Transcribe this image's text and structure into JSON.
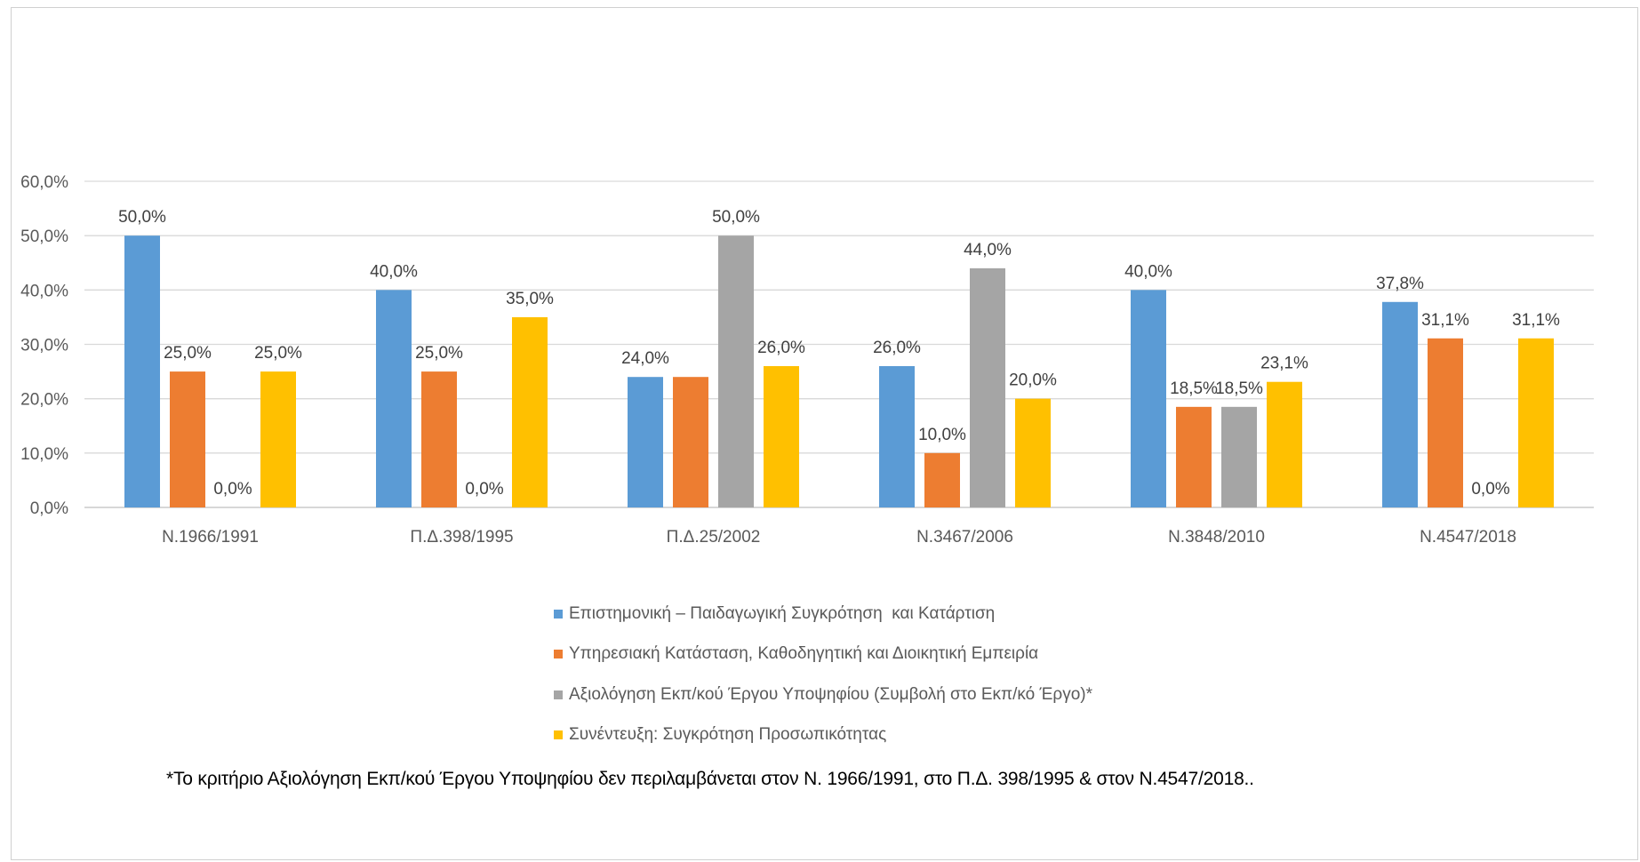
{
  "chart_data": {
    "type": "bar",
    "categories": [
      "Ν.1966/1991",
      "Π.Δ.398/1995",
      "Π.Δ.25/2002",
      "Ν.3467/2006",
      "Ν.3848/2010",
      "Ν.4547/2018"
    ],
    "series": [
      {
        "name": "Επιστημονική – Παιδαγωγική Συγκρότηση  και Κατάρτιση",
        "color": "#5B9BD5",
        "values": [
          50.0,
          40.0,
          24.0,
          26.0,
          40.0,
          37.8
        ],
        "labels": [
          "50,0%",
          "40,0%",
          "24,0%",
          "26,0%",
          "40,0%",
          "37,8%"
        ]
      },
      {
        "name": "Υπηρεσιακή Κατάσταση, Καθοδηγητική και Διοικητική Εμπειρία",
        "color": "#ED7D31",
        "values": [
          25.0,
          25.0,
          24.0,
          10.0,
          18.5,
          31.1
        ],
        "labels": [
          "25,0%",
          "25,0%",
          "",
          "10,0%",
          "18,5%",
          "31,1%"
        ]
      },
      {
        "name": "Αξιολόγηση Εκπ/κού Έργου Υποψηφίου (Συμβολή στο Εκπ/κό Έργο)*",
        "color": "#A5A5A5",
        "values": [
          0.0,
          0.0,
          50.0,
          44.0,
          18.5,
          0.0
        ],
        "labels": [
          "0,0%",
          "0,0%",
          "50,0%",
          "44,0%",
          "18,5%",
          "0,0%"
        ]
      },
      {
        "name": "Συνέντευξη: Συγκρότηση Προσωπικότητας",
        "color": "#FFC000",
        "values": [
          25.0,
          35.0,
          26.0,
          20.0,
          23.1,
          31.1
        ],
        "labels": [
          "25,0%",
          "35,0%",
          "26,0%",
          "20,0%",
          "23,1%",
          "31,1%"
        ]
      }
    ],
    "ylim": [
      0,
      60
    ],
    "yticks": [
      0,
      10,
      20,
      30,
      40,
      50,
      60
    ],
    "ytick_labels": [
      "0,0%",
      "10,0%",
      "20,0%",
      "30,0%",
      "40,0%",
      "50,0%",
      "60,0%"
    ],
    "grid": true,
    "legend_position": "bottom",
    "title": "",
    "xlabel": "",
    "ylabel": ""
  },
  "footnote": "*Το κριτήριο Αξιολόγηση Εκπ/κού Έργου Υποψηφίου δεν περιλαμβάνεται στον Ν. 1966/1991, στο Π.Δ. 398/1995 & στον Ν.4547/2018.."
}
